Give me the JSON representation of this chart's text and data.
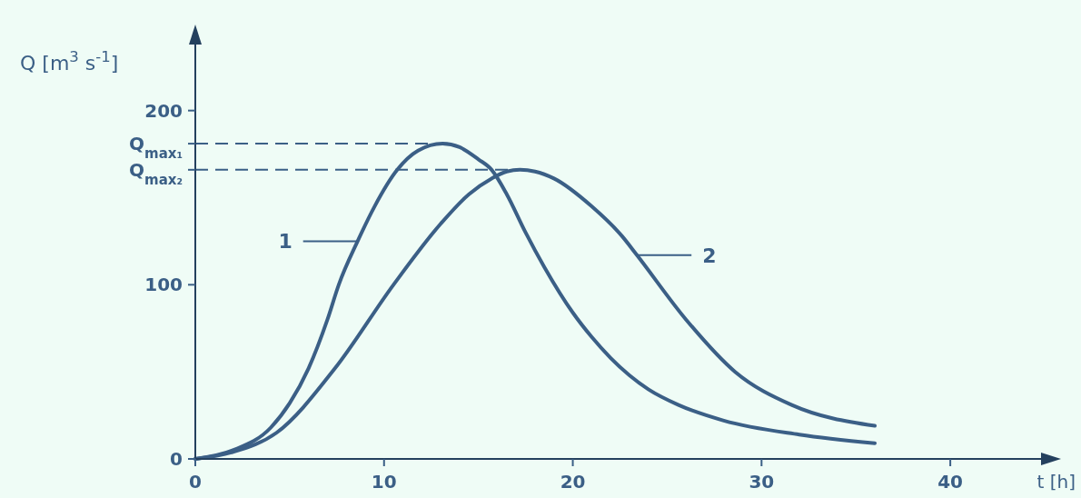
{
  "chart_data": {
    "type": "line",
    "xlabel": "t [h]",
    "ylabel": "Q [m$^{3}$ s$^{-1}$]",
    "xlim": [
      0,
      45
    ],
    "ylim": [
      0,
      240
    ],
    "xticks": [
      0,
      10,
      20,
      30,
      40
    ],
    "yticks": [
      0,
      100,
      200,
      {
        "value": 181,
        "label": "Q$_{max₁}$"
      },
      {
        "value": 166,
        "label": "Q$_{max₂}$"
      }
    ],
    "ref_lines": [
      {
        "axis": "y",
        "value": 181,
        "line_style": "dashed"
      },
      {
        "axis": "y",
        "value": 166,
        "line_style": "dashed"
      }
    ],
    "grid": false,
    "marker": "none",
    "line_style": "solid",
    "series": [
      {
        "name": "1",
        "color": "#3b5f86",
        "x": [
          0,
          2,
          4,
          5,
          6,
          7,
          7.6,
          8.6,
          9.5,
          10.7,
          11.8,
          13.1,
          14,
          15,
          15.7,
          16.5,
          17.5,
          18.5,
          20,
          21,
          22,
          23,
          24,
          25.6,
          28,
          32,
          36
        ],
        "values": [
          0,
          5,
          18,
          32,
          52,
          80,
          100,
          125,
          145,
          166,
          177,
          181,
          179,
          172,
          166,
          152,
          130,
          110,
          84,
          70,
          58,
          48,
          40,
          31,
          22,
          14,
          9
        ]
      },
      {
        "name": "2",
        "color": "#3b5f86",
        "x": [
          0,
          2,
          4.3,
          7.4,
          10.5,
          13,
          14.5,
          15.7,
          16.5,
          17.2,
          18,
          19,
          21,
          22.6,
          23.4,
          26,
          28.6,
          31.6,
          36
        ],
        "values": [
          0,
          4,
          15,
          52,
          100,
          135,
          152,
          161,
          165,
          166,
          165,
          161,
          145,
          128,
          117,
          80,
          50,
          31,
          19
        ]
      }
    ]
  }
}
